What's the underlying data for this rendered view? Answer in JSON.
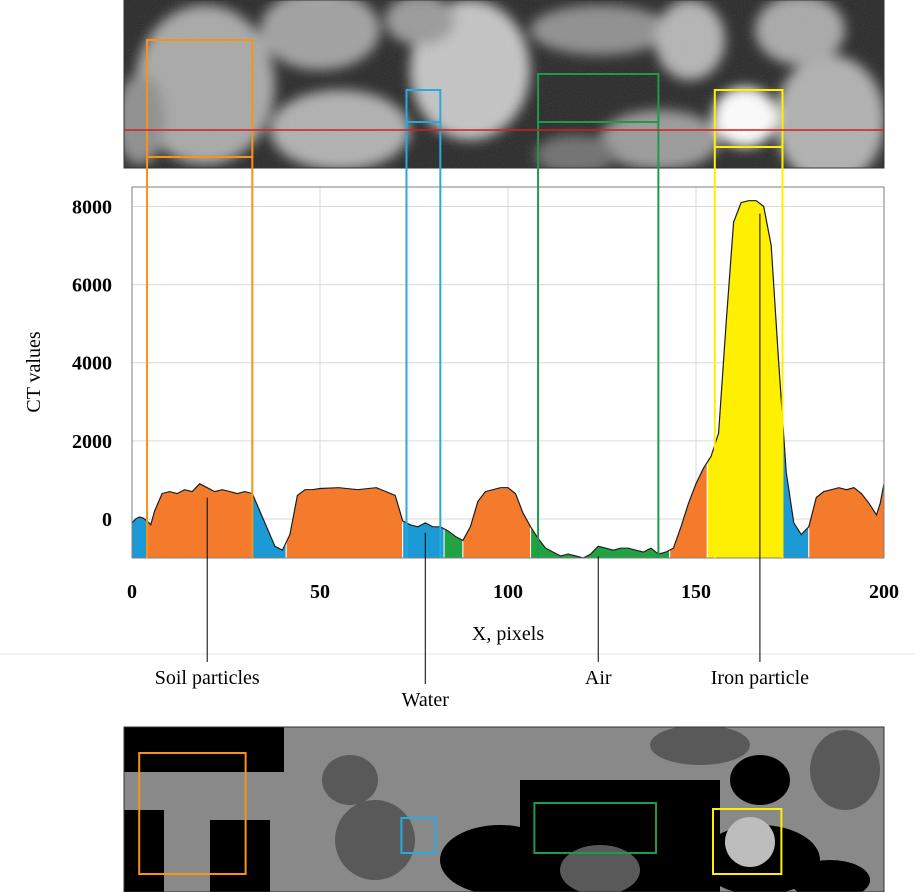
{
  "chart_data": {
    "type": "area",
    "xlabel": "X, pixels",
    "ylabel": "CT values",
    "xlim": [
      0,
      200
    ],
    "ylim": [
      -1000,
      8500
    ],
    "x_ticks": [
      0,
      50,
      100,
      150,
      200
    ],
    "y_ticks": [
      0,
      2000,
      4000,
      6000,
      8000
    ],
    "grid": true,
    "profile": {
      "x": [
        0,
        1,
        2,
        3,
        4,
        5,
        6,
        8,
        10,
        12,
        14,
        16,
        18,
        20,
        22,
        24,
        26,
        28,
        30,
        32,
        34,
        36,
        38,
        40,
        42,
        44,
        46,
        48,
        50,
        55,
        60,
        65,
        70,
        72,
        74,
        76,
        78,
        80,
        82,
        84,
        86,
        88,
        90,
        92,
        94,
        96,
        98,
        100,
        102,
        104,
        106,
        108,
        110,
        112,
        114,
        116,
        118,
        120,
        122,
        124,
        126,
        128,
        130,
        132,
        134,
        136,
        138,
        140,
        142,
        144,
        146,
        148,
        150,
        152,
        154,
        156,
        158,
        160,
        162,
        164,
        166,
        168,
        170,
        172,
        174,
        176,
        178,
        180,
        182,
        184,
        186,
        188,
        190,
        192,
        194,
        196,
        198,
        199,
        200
      ],
      "y": [
        -100,
        0,
        50,
        20,
        -50,
        -150,
        200,
        650,
        700,
        650,
        750,
        700,
        900,
        800,
        700,
        750,
        700,
        650,
        700,
        650,
        200,
        -250,
        -700,
        -800,
        -400,
        600,
        750,
        750,
        780,
        800,
        750,
        800,
        600,
        -50,
        -150,
        -200,
        -100,
        -200,
        -200,
        -300,
        -450,
        -550,
        -200,
        450,
        700,
        750,
        800,
        800,
        650,
        150,
        -200,
        -500,
        -750,
        -850,
        -950,
        -900,
        -950,
        -1000,
        -900,
        -700,
        -750,
        -800,
        -750,
        -750,
        -800,
        -850,
        -750,
        -900,
        -850,
        -750,
        -200,
        400,
        900,
        1300,
        1600,
        2200,
        5000,
        7600,
        8100,
        8150,
        8150,
        8000,
        7000,
        4000,
        1200,
        -100,
        -400,
        -200,
        550,
        700,
        750,
        800,
        750,
        800,
        650,
        400,
        100,
        400,
        900
      ]
    },
    "segments": [
      {
        "class": "water",
        "from": 0,
        "to": 4
      },
      {
        "class": "soil",
        "from": 4,
        "to": 32
      },
      {
        "class": "water",
        "from": 32,
        "to": 41
      },
      {
        "class": "soil",
        "from": 41,
        "to": 72
      },
      {
        "class": "water",
        "from": 72,
        "to": 83
      },
      {
        "class": "air",
        "from": 83,
        "to": 88
      },
      {
        "class": "soil",
        "from": 88,
        "to": 106
      },
      {
        "class": "air",
        "from": 106,
        "to": 143
      },
      {
        "class": "soil",
        "from": 143,
        "to": 153
      },
      {
        "class": "iron",
        "from": 153,
        "to": 173
      },
      {
        "class": "water",
        "from": 173,
        "to": 180
      },
      {
        "class": "soil",
        "from": 180,
        "to": 200
      }
    ],
    "class_colors": {
      "soil": "#f47b2c",
      "water": "#1b9ad6",
      "air": "#21a343",
      "iron": "#ffef00"
    },
    "roi_boxes": [
      {
        "class": "soil",
        "from": 4,
        "to": 32,
        "color": "#f79319"
      },
      {
        "class": "water",
        "from": 73,
        "to": 82,
        "color": "#2aa8e0"
      },
      {
        "class": "air",
        "from": 108,
        "to": 140,
        "color": "#1d9a4c"
      },
      {
        "class": "iron",
        "from": 155,
        "to": 173,
        "color": "#ffef00"
      }
    ],
    "callouts": [
      {
        "label": "Soil particles",
        "x": 20
      },
      {
        "label": "Water",
        "x": 78
      },
      {
        "label": "Air",
        "x": 124
      },
      {
        "label": "Iron particle",
        "x": 167
      }
    ]
  },
  "scan_line_color": "#d21f1f"
}
